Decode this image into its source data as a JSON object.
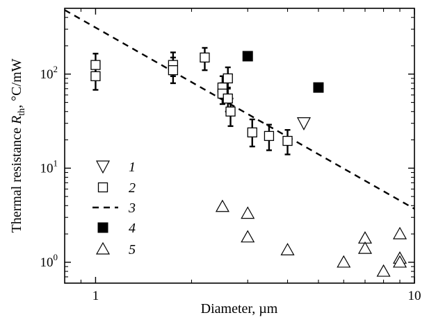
{
  "chart_data": {
    "type": "scatter",
    "xlabel": "Diameter, µm",
    "ylabel_main": "Thermal resistance ",
    "ylabel_symbol": "R",
    "ylabel_sub": "th",
    "ylabel_unit": ", °C/mW",
    "x_scale": "log",
    "y_scale": "log",
    "xlim": [
      0.8,
      10
    ],
    "ylim": [
      0.6,
      500
    ],
    "x_ticks": [
      {
        "value": 1,
        "label": "1"
      },
      {
        "value": 10,
        "label": "10"
      }
    ],
    "y_ticks": [
      {
        "value": 1,
        "base": "10",
        "exp": "0"
      },
      {
        "value": 10,
        "base": "10",
        "exp": "1"
      },
      {
        "value": 100,
        "base": "10",
        "exp": "2"
      }
    ],
    "grid": false,
    "legend_position": "bottom-left",
    "series": [
      {
        "name": "1",
        "marker": "triangle-down-open",
        "points": [
          [
            4.5,
            30
          ]
        ]
      },
      {
        "name": "2",
        "marker": "square-open-errorbar",
        "points": [
          {
            "x": 1.0,
            "y": 125,
            "lo": 95,
            "hi": 165
          },
          {
            "x": 1.0,
            "y": 95,
            "lo": 68,
            "hi": 125
          },
          {
            "x": 1.75,
            "y": 125,
            "lo": 95,
            "hi": 170
          },
          {
            "x": 1.75,
            "y": 110,
            "lo": 80,
            "hi": 150
          },
          {
            "x": 2.2,
            "y": 150,
            "lo": 110,
            "hi": 190
          },
          {
            "x": 2.5,
            "y": 72,
            "lo": 55,
            "hi": 95
          },
          {
            "x": 2.5,
            "y": 62,
            "lo": 48,
            "hi": 80
          },
          {
            "x": 2.6,
            "y": 90,
            "lo": 70,
            "hi": 118
          },
          {
            "x": 2.6,
            "y": 55,
            "lo": 40,
            "hi": 72
          },
          {
            "x": 2.65,
            "y": 40,
            "lo": 28,
            "hi": 55
          },
          {
            "x": 3.1,
            "y": 24,
            "lo": 17,
            "hi": 33
          },
          {
            "x": 3.5,
            "y": 22,
            "lo": 15.5,
            "hi": 29
          },
          {
            "x": 4.0,
            "y": 19.5,
            "lo": 14,
            "hi": 25.5
          }
        ]
      },
      {
        "name": "3",
        "marker": "dashed-line",
        "points": [
          [
            0.8,
            480
          ],
          [
            10,
            3.7
          ]
        ]
      },
      {
        "name": "4",
        "marker": "square-filled",
        "points": [
          [
            3.0,
            155
          ],
          [
            5.0,
            72
          ]
        ]
      },
      {
        "name": "5",
        "marker": "triangle-up-open",
        "points": [
          [
            2.5,
            3.9
          ],
          [
            3.0,
            3.3
          ],
          [
            3.0,
            1.85
          ],
          [
            4.0,
            1.35
          ],
          [
            6.0,
            1.0
          ],
          [
            7.0,
            1.8
          ],
          [
            7.0,
            1.4
          ],
          [
            8.0,
            0.8
          ],
          [
            9.0,
            2.0
          ],
          [
            9.0,
            1.1
          ],
          [
            9.0,
            1.0
          ]
        ]
      }
    ]
  }
}
